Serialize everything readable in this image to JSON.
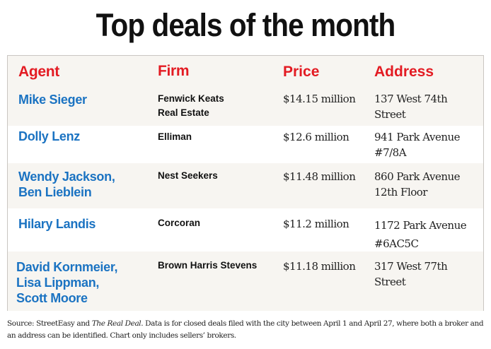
{
  "title": "Top deals of the month",
  "headers": {
    "agent": "Agent",
    "firm": "Firm",
    "price": "Price",
    "address": "Address"
  },
  "rows": [
    {
      "agent": "Mike Sieger",
      "firm": "Fenwick Keats Real Estate",
      "price": "$14.15 million",
      "address": "137 West 74th Street"
    },
    {
      "agent": "Dolly Lenz",
      "firm": "Elliman",
      "price": "$12.6 million",
      "address": "941 Park Avenue #7/8A"
    },
    {
      "agent": "Wendy Jackson, Ben Lieblein",
      "firm": "Nest Seekers",
      "price": "$11.48 million",
      "address": "860 Park Avenue 12th Floor"
    },
    {
      "agent": "Hilary Landis",
      "firm": "Corcoran",
      "price": "$11.2 million",
      "address": "1172 Park Avenue #6AC5C"
    },
    {
      "agent": "David Kornmeier, Lisa Lippman, Scott Moore",
      "firm": "Brown Harris Stevens",
      "price": "$11.18 million",
      "address": "317 West 77th Street"
    }
  ],
  "source": {
    "prefix": "Source: StreetEasy and ",
    "pub": "The Real Deal",
    "suffix": ". Data is for closed deals filed with the city between April 1 and April 27, where both a broker and an address can be identified. Chart only includes sellers’ brokers."
  }
}
